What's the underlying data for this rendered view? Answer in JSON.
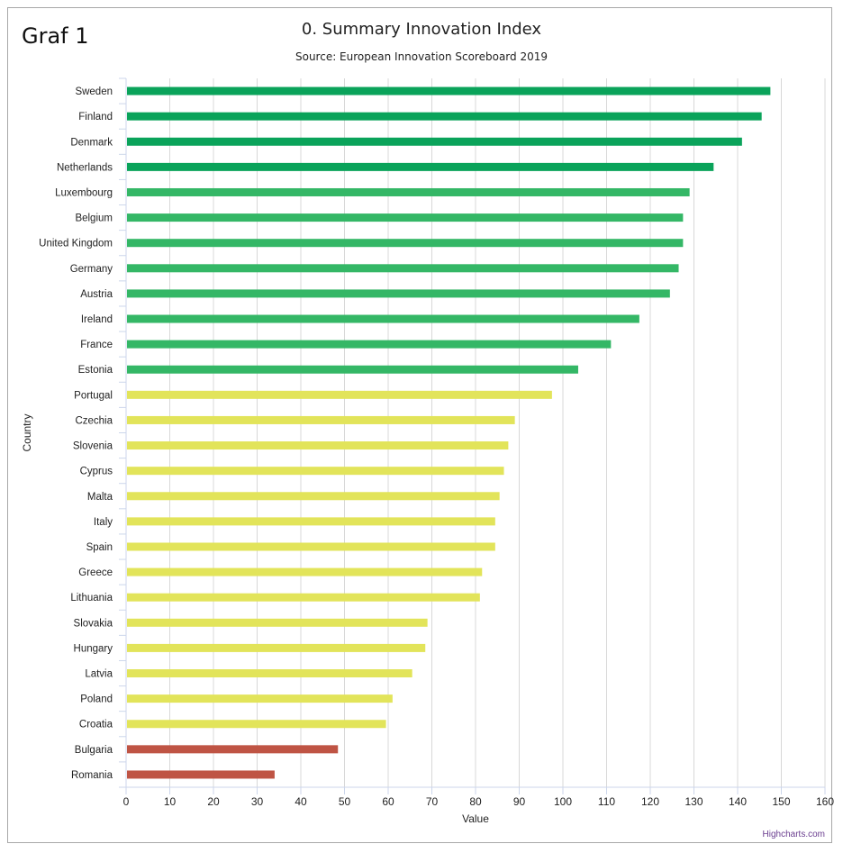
{
  "page": {
    "corner_label": "Graf 1",
    "credit": "Highcharts.com"
  },
  "chart_data": {
    "type": "bar",
    "orientation": "horizontal",
    "title": "0. Summary Innovation Index",
    "subtitle": "Source: European Innovation Scoreboard 2019",
    "xlabel": "Country",
    "ylabel": "Value",
    "xlim": [
      0,
      160
    ],
    "ticks": [
      0,
      10,
      20,
      30,
      40,
      50,
      60,
      70,
      80,
      90,
      100,
      110,
      120,
      130,
      140,
      150,
      160
    ],
    "grid": true,
    "colors": {
      "leader": "#0aa35a",
      "strong": "#34b766",
      "moderate": "#e2e45a",
      "modest": "#bf5444",
      "grid": "#d8d8d8",
      "axis": "#ccd6eb"
    },
    "categories": [
      "Sweden",
      "Finland",
      "Denmark",
      "Netherlands",
      "Luxembourg",
      "Belgium",
      "United Kingdom",
      "Germany",
      "Austria",
      "Ireland",
      "France",
      "Estonia",
      "Portugal",
      "Czechia",
      "Slovenia",
      "Cyprus",
      "Malta",
      "Italy",
      "Spain",
      "Greece",
      "Lithuania",
      "Slovakia",
      "Hungary",
      "Latvia",
      "Poland",
      "Croatia",
      "Bulgaria",
      "Romania"
    ],
    "values": [
      147.5,
      145.5,
      141,
      134.5,
      129,
      127.5,
      127.5,
      126.5,
      124.5,
      117.5,
      111,
      103.5,
      97.5,
      89,
      87.5,
      86.5,
      85.5,
      84.5,
      84.5,
      81.5,
      81,
      69,
      68.5,
      65.5,
      61,
      59.5,
      48.5,
      34
    ],
    "groups": [
      "leader",
      "leader",
      "leader",
      "leader",
      "strong",
      "strong",
      "strong",
      "strong",
      "strong",
      "strong",
      "strong",
      "strong",
      "moderate",
      "moderate",
      "moderate",
      "moderate",
      "moderate",
      "moderate",
      "moderate",
      "moderate",
      "moderate",
      "moderate",
      "moderate",
      "moderate",
      "moderate",
      "moderate",
      "modest",
      "modest"
    ]
  }
}
